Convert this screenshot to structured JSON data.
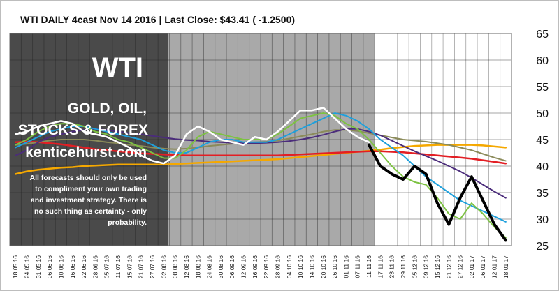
{
  "chart_data": {
    "type": "line",
    "title": {
      "instrument": "WTI DAILY",
      "model": "4cast",
      "date": "Nov 14 2016",
      "separator": "|",
      "close_label": "Last Close:",
      "close_value": "$43.41",
      "change": "( -1.2500)"
    },
    "overlay": {
      "brand": "WTI",
      "line1": "GOLD, OIL,",
      "line2": "STOCKS & FOREX",
      "site": "kenticehurst.com",
      "disclaimer": [
        "All forecasts should only be used",
        "to compliment your own trading",
        "and investment strategy. There is",
        "no such thing as certainty - only",
        "probability."
      ]
    },
    "ylim": [
      25,
      65
    ],
    "yticks": [
      65,
      60,
      55,
      50,
      45,
      40,
      35,
      30,
      25
    ],
    "grid": true,
    "x_dates": [
      "18 05 16",
      "24 05 16",
      "31 05 16",
      "06 06 16",
      "10 06 16",
      "16 06 16",
      "22 06 16",
      "28 06 16",
      "05 07 16",
      "11 07 16",
      "15 07 16",
      "21 07 16",
      "27 07 16",
      "02 08 16",
      "08 08 16",
      "12 08 16",
      "18 08 16",
      "24 08 16",
      "30 08 16",
      "06 09 16",
      "12 09 16",
      "16 09 16",
      "22 09 16",
      "28 09 16",
      "04 10 16",
      "10 10 16",
      "14 10 16",
      "20 10 16",
      "26 10 16",
      "01 11 16",
      "07 11 16",
      "11 11 16",
      "17 11 16",
      "23 11 16",
      "29 11 16",
      "05 12 16",
      "09 12 16",
      "15 12 16",
      "21 12 16",
      "27 12 16",
      "02 01 17",
      "06 01 17",
      "12 01 17",
      "18 01 17"
    ],
    "history_end_index": 31,
    "series": [
      {
        "name": "Price (history)",
        "color": "#ffffff",
        "values": [
          46,
          46.5,
          47.5,
          48,
          48.5,
          48,
          46.5,
          46,
          45.5,
          44.5,
          43.5,
          42,
          41,
          40.5,
          42,
          46,
          47.5,
          46.5,
          45,
          44.5,
          44,
          45.5,
          45,
          46.5,
          48.5,
          50.5,
          50.5,
          51,
          49,
          47,
          45.5,
          44.5
        ]
      },
      {
        "name": "Price (forecast)",
        "color": "#000000",
        "values": [
          null,
          null,
          null,
          null,
          null,
          null,
          null,
          null,
          null,
          null,
          null,
          null,
          null,
          null,
          null,
          null,
          null,
          null,
          null,
          null,
          null,
          null,
          null,
          null,
          null,
          null,
          null,
          null,
          null,
          null,
          null,
          44,
          40,
          38.5,
          37.5,
          40,
          38.5,
          33,
          29,
          34,
          38,
          33.5,
          29,
          26
        ]
      },
      {
        "name": "Fast MA",
        "color": "#7dc242",
        "values": [
          44,
          45,
          46.5,
          47.5,
          48,
          48,
          47.5,
          46.5,
          46,
          45,
          44.5,
          43.5,
          42.5,
          41.5,
          41.5,
          43,
          45.5,
          46.5,
          46,
          45.5,
          45,
          45,
          45,
          46,
          47.5,
          49,
          49.5,
          50,
          49.5,
          48,
          47,
          45,
          42.5,
          40,
          38,
          37,
          36.5,
          34,
          31,
          30,
          33,
          31,
          28.5,
          26.5
        ]
      },
      {
        "name": "Blue MA",
        "color": "#1ea0dc",
        "values": [
          43.5,
          44.5,
          45.5,
          46.5,
          47,
          47.5,
          47.5,
          47,
          46.5,
          46,
          45.5,
          45,
          44,
          43,
          42.5,
          42.5,
          43.5,
          44.5,
          45,
          45,
          44.5,
          44.5,
          44.5,
          45,
          46,
          47,
          48,
          49,
          50,
          49.5,
          48.5,
          47,
          45,
          43.5,
          42,
          40,
          38,
          36.5,
          35,
          33.5,
          32.5,
          31.5,
          30.5,
          29.5
        ]
      },
      {
        "name": "Olive MA",
        "color": "#8b8b5a",
        "values": [
          44,
          44.2,
          44.5,
          44.8,
          45,
          45,
          45,
          44.8,
          44.5,
          44.3,
          44,
          43.8,
          43.5,
          43.3,
          43.2,
          43.3,
          43.5,
          43.8,
          44,
          44.2,
          44.3,
          44.5,
          44.6,
          44.8,
          45.2,
          45.6,
          46,
          46.5,
          46.8,
          46.8,
          46.6,
          46.2,
          45.8,
          45.4,
          45,
          44.8,
          44.6,
          44.3,
          44,
          43.5,
          43,
          42.3,
          41.6,
          41
        ]
      },
      {
        "name": "Purple MA",
        "color": "#4b2c7b",
        "values": [
          42,
          43,
          44.5,
          45.5,
          46,
          46.5,
          46.8,
          47,
          46.8,
          46.5,
          46.2,
          46,
          45.7,
          45.4,
          45.1,
          44.9,
          44.8,
          44.6,
          44.5,
          44.4,
          44.3,
          44.3,
          44.4,
          44.5,
          44.7,
          45,
          45.4,
          45.9,
          46.5,
          47,
          47,
          46.5,
          45.8,
          44.8,
          43.8,
          42.8,
          41.9,
          41,
          40,
          39,
          37.8,
          36.5,
          35.2,
          34
        ]
      },
      {
        "name": "Red MA",
        "color": "#e31e24",
        "values": [
          44.5,
          44.6,
          44.5,
          44.3,
          44.1,
          43.8,
          43.5,
          43.2,
          43,
          42.8,
          42.6,
          42.4,
          42.3,
          42.2,
          42.1,
          42,
          42,
          42,
          42,
          42,
          42,
          42,
          42,
          42,
          42.1,
          42.2,
          42.3,
          42.4,
          42.5,
          42.6,
          42.7,
          42.8,
          42.8,
          42.7,
          42.6,
          42.4,
          42.2,
          42,
          41.8,
          41.6,
          41.4,
          41.1,
          40.8,
          40.5
        ]
      },
      {
        "name": "Orange MA",
        "color": "#f5a800",
        "values": [
          38.5,
          39,
          39.3,
          39.5,
          39.7,
          39.8,
          40,
          40.1,
          40.2,
          40.3,
          40.3,
          40.3,
          40.3,
          40.3,
          40.4,
          40.5,
          40.6,
          40.7,
          40.8,
          40.9,
          41,
          41.1,
          41.2,
          41.3,
          41.5,
          41.7,
          41.9,
          42.1,
          42.3,
          42.5,
          42.7,
          42.9,
          43.1,
          43.4,
          43.6,
          43.8,
          43.9,
          44,
          44,
          44,
          44,
          43.9,
          43.7,
          43.5
        ]
      }
    ]
  }
}
